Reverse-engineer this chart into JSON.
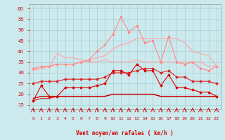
{
  "x": [
    0,
    1,
    2,
    3,
    4,
    5,
    6,
    7,
    8,
    9,
    10,
    11,
    12,
    13,
    14,
    15,
    16,
    17,
    18,
    19,
    20,
    21,
    22,
    23
  ],
  "line1": [
    32,
    32,
    33,
    39,
    37,
    37,
    36,
    35,
    35,
    36,
    35,
    35,
    35,
    36,
    35,
    35,
    35,
    35,
    35,
    35,
    35,
    35,
    33,
    33
  ],
  "line2": [
    31,
    32,
    33,
    34,
    34,
    34,
    35,
    36,
    37,
    38,
    41,
    43,
    44,
    46,
    46,
    46,
    46,
    46,
    46,
    44,
    40,
    39,
    38,
    33
  ],
  "line3": [
    17,
    24,
    19,
    19,
    23,
    23,
    23,
    23,
    24,
    25,
    31,
    31,
    29,
    34,
    31,
    31,
    24,
    29,
    23,
    23,
    22,
    21,
    21,
    19
  ],
  "line4": [
    25,
    26,
    26,
    26,
    27,
    27,
    27,
    27,
    27,
    28,
    30,
    30,
    30,
    31,
    32,
    32,
    30,
    31,
    28,
    28,
    26,
    26,
    26,
    25
  ],
  "line5": [
    18,
    19,
    19,
    19,
    19,
    19,
    19,
    19,
    19,
    19,
    20,
    20,
    20,
    20,
    20,
    20,
    19,
    19,
    19,
    19,
    19,
    19,
    19,
    19
  ],
  "line6": [
    17,
    18,
    18,
    19,
    19,
    19,
    19,
    19,
    19,
    19,
    20,
    20,
    20,
    20,
    20,
    20,
    19,
    19,
    19,
    19,
    19,
    19,
    19,
    19
  ],
  "line7": [
    32,
    33,
    33,
    34,
    34,
    34,
    35,
    36,
    40,
    43,
    48,
    56,
    49,
    52,
    44,
    45,
    35,
    47,
    35,
    34,
    35,
    32,
    31,
    33
  ],
  "bg_color": "#cce9ed",
  "grid_color": "#aad4d9",
  "line1_color": "#ffaaaa",
  "line2_color": "#ffaaaa",
  "line3_color": "#dd0000",
  "line4_color": "#dd2222",
  "line5_color": "#cc0000",
  "line6_color": "#cc0000",
  "line7_color": "#ff8888",
  "xlabel": "Vent moyen/en rafales ( km/h )",
  "xlabel_color": "#cc0000",
  "tick_color": "#cc0000",
  "arrow_color": "#cc0000",
  "ylim": [
    13,
    62
  ],
  "yticks": [
    15,
    20,
    25,
    30,
    35,
    40,
    45,
    50,
    55,
    60
  ],
  "xlim": [
    -0.5,
    23.5
  ]
}
